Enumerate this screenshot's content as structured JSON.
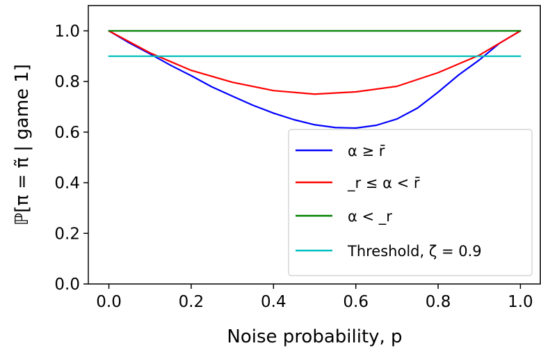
{
  "chart_data": {
    "type": "line",
    "xlabel": "Noise probability, p",
    "ylabel": "ℙ[π = π̃ | game 1]",
    "xlim": [
      -0.05,
      1.05
    ],
    "ylim": [
      0.0,
      1.1
    ],
    "xticks": [
      0.0,
      0.2,
      0.4,
      0.6,
      0.8,
      1.0
    ],
    "xtick_labels": [
      "0.0",
      "0.2",
      "0.4",
      "0.6",
      "0.8",
      "1.0"
    ],
    "yticks": [
      0.0,
      0.2,
      0.4,
      0.6,
      0.8,
      1.0
    ],
    "ytick_labels": [
      "0.0",
      "0.2",
      "0.4",
      "0.6",
      "0.8",
      "1.0"
    ],
    "grid": false,
    "legend_position": "lower-right",
    "series": [
      {
        "name": "α ≥ r̄",
        "color": "#0000ff",
        "x": [
          0.0,
          0.05,
          0.1,
          0.15,
          0.2,
          0.25,
          0.3,
          0.35,
          0.4,
          0.45,
          0.5,
          0.55,
          0.6,
          0.65,
          0.7,
          0.75,
          0.8,
          0.85,
          0.9,
          0.95,
          1.0
        ],
        "y": [
          1.0,
          0.952,
          0.909,
          0.864,
          0.823,
          0.779,
          0.742,
          0.706,
          0.675,
          0.649,
          0.629,
          0.618,
          0.616,
          0.627,
          0.652,
          0.695,
          0.758,
          0.826,
          0.885,
          0.952,
          1.0
        ]
      },
      {
        "name": "_r ≤ α < r̄",
        "color": "#ff0000",
        "x": [
          0.0,
          0.1,
          0.2,
          0.3,
          0.4,
          0.5,
          0.6,
          0.7,
          0.8,
          0.9,
          1.0
        ],
        "y": [
          1.0,
          0.913,
          0.844,
          0.797,
          0.764,
          0.75,
          0.759,
          0.781,
          0.835,
          0.904,
          1.0
        ]
      },
      {
        "name": "α < _r",
        "color": "#008000",
        "x": [
          0.0,
          1.0
        ],
        "y": [
          1.0,
          1.0
        ]
      },
      {
        "name": "Threshold, ζ = 0.9",
        "color": "#00bfbf",
        "x": [
          0.0,
          1.0
        ],
        "y": [
          0.9,
          0.9
        ]
      }
    ]
  }
}
